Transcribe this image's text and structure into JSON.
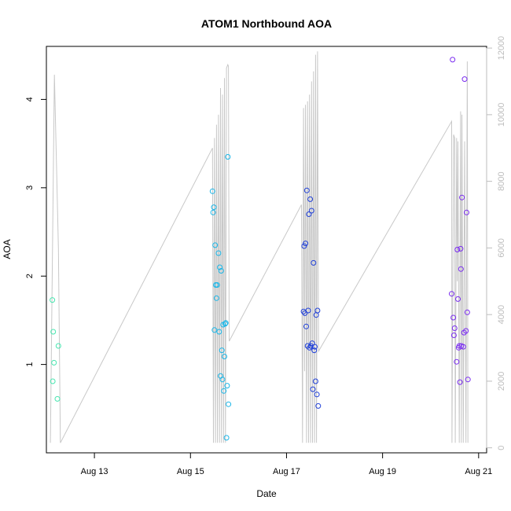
{
  "chart_data": {
    "type": "scatter",
    "title": "ATOM1 Northbound AOA",
    "xlabel": "Date",
    "ylabel": "AOA",
    "x_axis": {
      "type": "date",
      "range": [
        "2023-08-12T00:00",
        "2023-08-21T04:00"
      ],
      "ticks": [
        {
          "value": "2023-08-13T00:00",
          "label": "Aug 13"
        },
        {
          "value": "2023-08-15T00:00",
          "label": "Aug 15"
        },
        {
          "value": "2023-08-17T00:00",
          "label": "Aug 17"
        },
        {
          "value": "2023-08-19T00:00",
          "label": "Aug 19"
        },
        {
          "value": "2023-08-21T00:00",
          "label": "Aug 21"
        }
      ]
    },
    "y_left": {
      "range": [
        0,
        4.6
      ],
      "ticks": [
        1,
        2,
        3,
        4
      ]
    },
    "y_right": {
      "range": [
        -150,
        12050
      ],
      "ticks": [
        0,
        2000,
        4000,
        6000,
        8000,
        10000,
        12000
      ],
      "color": "#bdbdbd"
    },
    "grid": false,
    "legend": "none",
    "series": [
      {
        "color": "#48e6b0",
        "points": [
          [
            "2023-08-12T03:00",
            1.73
          ],
          [
            "2023-08-12T03:12",
            0.81
          ],
          [
            "2023-08-12T03:24",
            1.37
          ],
          [
            "2023-08-12T03:48",
            1.02
          ],
          [
            "2023-08-12T05:30",
            0.61
          ],
          [
            "2023-08-12T06:00",
            1.21
          ]
        ]
      },
      {
        "color": "#1ab6e8",
        "points": [
          [
            "2023-08-15T11:00",
            2.96
          ],
          [
            "2023-08-15T11:20",
            2.72
          ],
          [
            "2023-08-15T11:40",
            2.78
          ],
          [
            "2023-08-15T12:00",
            1.39
          ],
          [
            "2023-08-15T12:20",
            2.35
          ],
          [
            "2023-08-15T12:40",
            1.9
          ],
          [
            "2023-08-15T13:00",
            1.75
          ],
          [
            "2023-08-15T13:20",
            1.9
          ],
          [
            "2023-08-15T14:00",
            2.26
          ],
          [
            "2023-08-15T14:20",
            1.37
          ],
          [
            "2023-08-15T14:40",
            2.1
          ],
          [
            "2023-08-15T15:00",
            0.87
          ],
          [
            "2023-08-15T15:20",
            2.06
          ],
          [
            "2023-08-15T15:40",
            1.16
          ],
          [
            "2023-08-15T16:00",
            0.83
          ],
          [
            "2023-08-15T16:20",
            1.45
          ],
          [
            "2023-08-15T16:40",
            0.7
          ],
          [
            "2023-08-15T17:00",
            1.09
          ],
          [
            "2023-08-15T17:20",
            1.46
          ],
          [
            "2023-08-15T17:40",
            1.47
          ],
          [
            "2023-08-15T18:00",
            0.17
          ],
          [
            "2023-08-15T18:20",
            0.76
          ],
          [
            "2023-08-15T18:40",
            3.35
          ],
          [
            "2023-08-15T19:00",
            0.55
          ]
        ]
      },
      {
        "color": "#2040d8",
        "points": [
          [
            "2023-08-17T08:30",
            1.6
          ],
          [
            "2023-08-17T08:50",
            2.34
          ],
          [
            "2023-08-17T09:10",
            1.58
          ],
          [
            "2023-08-17T09:30",
            2.37
          ],
          [
            "2023-08-17T09:50",
            1.43
          ],
          [
            "2023-08-17T10:10",
            2.97
          ],
          [
            "2023-08-17T10:30",
            1.21
          ],
          [
            "2023-08-17T10:50",
            1.61
          ],
          [
            "2023-08-17T11:10",
            2.7
          ],
          [
            "2023-08-17T11:30",
            1.19
          ],
          [
            "2023-08-17T11:50",
            2.87
          ],
          [
            "2023-08-17T12:10",
            1.21
          ],
          [
            "2023-08-17T12:30",
            2.74
          ],
          [
            "2023-08-17T12:50",
            1.24
          ],
          [
            "2023-08-17T13:10",
            0.72
          ],
          [
            "2023-08-17T13:30",
            2.15
          ],
          [
            "2023-08-17T13:50",
            1.16
          ],
          [
            "2023-08-17T14:10",
            1.2
          ],
          [
            "2023-08-17T14:30",
            0.81
          ],
          [
            "2023-08-17T14:50",
            1.56
          ],
          [
            "2023-08-17T15:10",
            0.66
          ],
          [
            "2023-08-17T15:30",
            1.61
          ],
          [
            "2023-08-17T15:50",
            0.53
          ]
        ]
      },
      {
        "color": "#7a2cf0",
        "points": [
          [
            "2023-08-20T10:30",
            1.8
          ],
          [
            "2023-08-20T11:00",
            4.45
          ],
          [
            "2023-08-20T11:20",
            1.53
          ],
          [
            "2023-08-20T11:40",
            1.33
          ],
          [
            "2023-08-20T12:00",
            1.41
          ],
          [
            "2023-08-20T13:00",
            1.03
          ],
          [
            "2023-08-20T13:20",
            2.3
          ],
          [
            "2023-08-20T13:40",
            1.74
          ],
          [
            "2023-08-20T14:00",
            1.19
          ],
          [
            "2023-08-20T14:20",
            1.21
          ],
          [
            "2023-08-20T14:40",
            0.8
          ],
          [
            "2023-08-20T15:00",
            2.31
          ],
          [
            "2023-08-20T15:10",
            2.08
          ],
          [
            "2023-08-20T15:20",
            1.21
          ],
          [
            "2023-08-20T15:40",
            2.89
          ],
          [
            "2023-08-20T16:20",
            1.2
          ],
          [
            "2023-08-20T16:40",
            1.36
          ],
          [
            "2023-08-20T17:00",
            4.23
          ],
          [
            "2023-08-20T17:40",
            1.38
          ],
          [
            "2023-08-20T18:00",
            2.72
          ],
          [
            "2023-08-20T18:20",
            1.59
          ],
          [
            "2023-08-20T18:40",
            0.83
          ]
        ]
      }
    ],
    "background_line": {
      "axis": "right",
      "color": "#c8c8c8",
      "points": [
        [
          "2023-08-12T02:00",
          150
        ],
        [
          "2023-08-12T04:00",
          11200
        ],
        [
          "2023-08-12T06:00",
          6000
        ],
        [
          "2023-08-12T07:00",
          150
        ],
        [
          "2023-08-15T11:00",
          9000
        ],
        [
          "2023-08-15T11:30",
          150
        ],
        [
          "2023-08-15T12:00",
          9300
        ],
        [
          "2023-08-15T12:30",
          150
        ],
        [
          "2023-08-15T13:00",
          9700
        ],
        [
          "2023-08-15T13:30",
          150
        ],
        [
          "2023-08-15T14:00",
          10000
        ],
        [
          "2023-08-15T14:30",
          150
        ],
        [
          "2023-08-15T15:00",
          10800
        ],
        [
          "2023-08-15T15:30",
          150
        ],
        [
          "2023-08-15T16:00",
          10600
        ],
        [
          "2023-08-15T16:30",
          150
        ],
        [
          "2023-08-15T17:00",
          11100
        ],
        [
          "2023-08-15T17:30",
          150
        ],
        [
          "2023-08-15T18:00",
          11400
        ],
        [
          "2023-08-15T18:40",
          11500
        ],
        [
          "2023-08-15T19:00",
          11450
        ],
        [
          "2023-08-15T19:20",
          3200
        ],
        [
          "2023-08-17T07:30",
          7300
        ],
        [
          "2023-08-17T08:00",
          150
        ],
        [
          "2023-08-17T08:30",
          10200
        ],
        [
          "2023-08-17T09:00",
          2300
        ],
        [
          "2023-08-17T09:30",
          10300
        ],
        [
          "2023-08-17T10:00",
          150
        ],
        [
          "2023-08-17T10:30",
          10400
        ],
        [
          "2023-08-17T11:00",
          150
        ],
        [
          "2023-08-17T11:30",
          10600
        ],
        [
          "2023-08-17T12:00",
          150
        ],
        [
          "2023-08-17T12:30",
          11000
        ],
        [
          "2023-08-17T13:00",
          150
        ],
        [
          "2023-08-17T13:30",
          11300
        ],
        [
          "2023-08-17T14:00",
          150
        ],
        [
          "2023-08-17T14:30",
          11800
        ],
        [
          "2023-08-17T15:00",
          150
        ],
        [
          "2023-08-17T15:30",
          11900
        ],
        [
          "2023-08-17T16:00",
          2900
        ],
        [
          "2023-08-20T10:30",
          9800
        ],
        [
          "2023-08-20T10:40",
          150
        ],
        [
          "2023-08-20T11:30",
          9400
        ],
        [
          "2023-08-20T12:00",
          9300
        ],
        [
          "2023-08-20T12:20",
          150
        ],
        [
          "2023-08-20T13:00",
          9300
        ],
        [
          "2023-08-20T13:20",
          5000
        ],
        [
          "2023-08-20T13:40",
          9200
        ],
        [
          "2023-08-20T14:20",
          150
        ],
        [
          "2023-08-20T15:00",
          10100
        ],
        [
          "2023-08-20T15:20",
          150
        ],
        [
          "2023-08-20T15:40",
          10000
        ],
        [
          "2023-08-20T16:20",
          150
        ],
        [
          "2023-08-20T17:00",
          9200
        ],
        [
          "2023-08-20T17:40",
          150
        ],
        [
          "2023-08-20T18:20",
          11600
        ],
        [
          "2023-08-20T18:40",
          150
        ]
      ]
    }
  }
}
